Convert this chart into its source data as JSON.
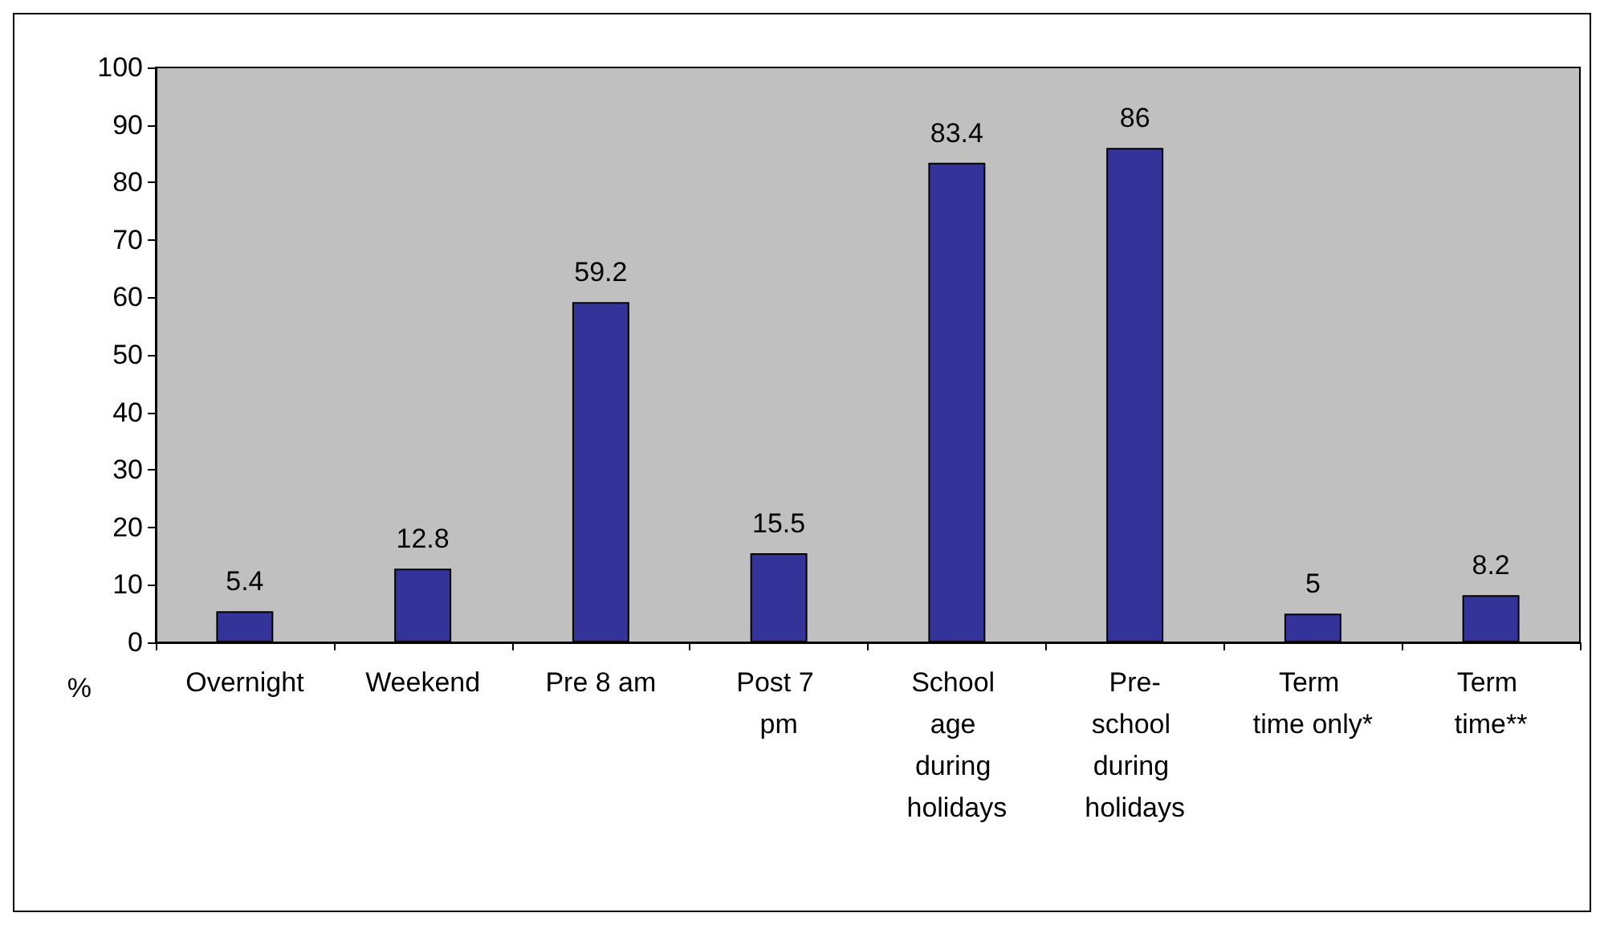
{
  "chart_data": {
    "type": "bar",
    "ylabel": "%",
    "categories": [
      "Overnight",
      "Weekend",
      "Pre 8 am",
      "Post 7 pm",
      "School age during holidays",
      "Pre-school during holidays",
      "Term time only*",
      "Term time**"
    ],
    "values": [
      5.4,
      12.8,
      59.2,
      15.5,
      83.4,
      86,
      5,
      8.2
    ],
    "color": "#333399",
    "ylim": [
      0,
      100
    ],
    "yticks": [
      0,
      10,
      20,
      30,
      40,
      50,
      60,
      70,
      80,
      90,
      100
    ],
    "grid": false,
    "data_labels": true
  }
}
